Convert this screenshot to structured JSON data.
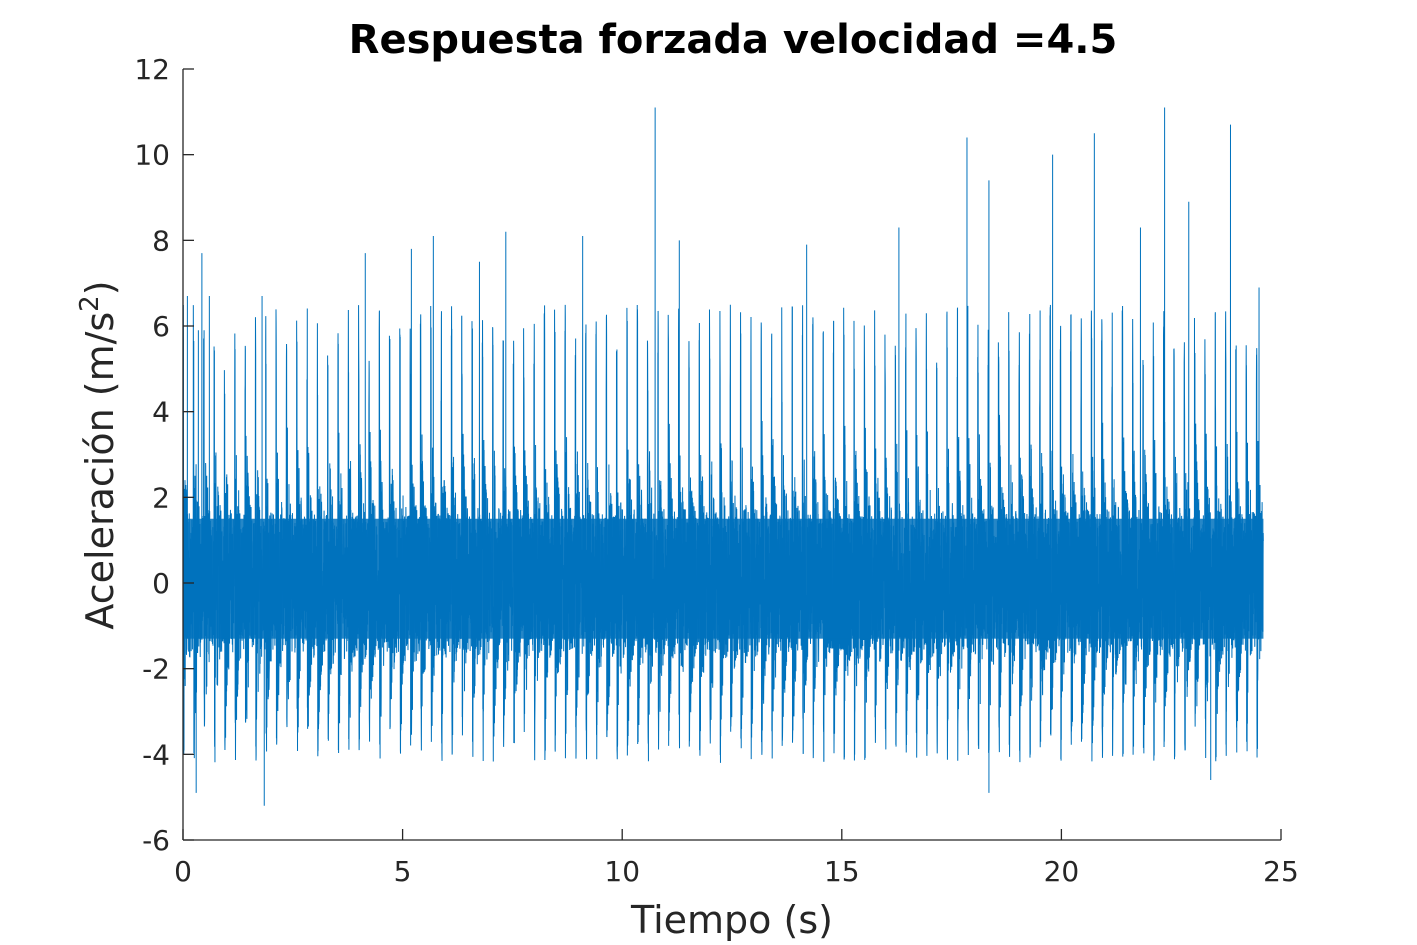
{
  "chart_data": {
    "type": "line",
    "title": "Respuesta forzada velocidad =4.5",
    "xlabel": "Tiempo (s)",
    "ylabel": "Aceleración (m/s",
    "ylabel_superscript": "2",
    "ylabel_close": ")",
    "xlim": [
      0,
      25
    ],
    "ylim": [
      -6,
      12
    ],
    "xticks": [
      0,
      5,
      10,
      15,
      20,
      25
    ],
    "yticks": [
      -6,
      -4,
      -2,
      0,
      2,
      4,
      6,
      8,
      10,
      12
    ],
    "xtick_labels": [
      "0",
      "5",
      "10",
      "15",
      "20",
      "25"
    ],
    "ytick_labels": [
      "-6",
      "-4",
      "-2",
      "0",
      "2",
      "4",
      "6",
      "8",
      "10",
      "12"
    ],
    "grid": false,
    "line_color": "#0072BD",
    "series": [
      {
        "x_start": 0,
        "x_end": 24.6,
        "cycle_period_s": 0.235,
        "peaks": [
          {
            "x": 0.1,
            "y": 6.7
          },
          {
            "x": 0.35,
            "y": 5.9
          },
          {
            "x": 0.43,
            "y": 7.7
          },
          {
            "x": 0.6,
            "y": 6.7
          },
          {
            "x": 1.8,
            "y": 6.7
          },
          {
            "x": 4.15,
            "y": 7.7
          },
          {
            "x": 5.2,
            "y": 7.8
          },
          {
            "x": 5.7,
            "y": 8.1
          },
          {
            "x": 6.75,
            "y": 7.5
          },
          {
            "x": 7.35,
            "y": 8.2
          },
          {
            "x": 9.1,
            "y": 8.1
          },
          {
            "x": 10.75,
            "y": 11.1
          },
          {
            "x": 11.3,
            "y": 8.0
          },
          {
            "x": 14.2,
            "y": 7.9
          },
          {
            "x": 16.3,
            "y": 8.3
          },
          {
            "x": 17.85,
            "y": 10.4
          },
          {
            "x": 18.35,
            "y": 9.4
          },
          {
            "x": 19.8,
            "y": 10.0
          },
          {
            "x": 20.75,
            "y": 10.5
          },
          {
            "x": 21.8,
            "y": 8.3
          },
          {
            "x": 22.35,
            "y": 11.1
          },
          {
            "x": 22.9,
            "y": 8.9
          },
          {
            "x": 23.85,
            "y": 10.7
          },
          {
            "x": 24.5,
            "y": 6.9
          }
        ],
        "troughs": [
          {
            "x": 0.3,
            "y": -4.9
          },
          {
            "x": 1.85,
            "y": -5.2
          },
          {
            "x": 18.35,
            "y": -4.9
          },
          {
            "x": 23.4,
            "y": -4.6
          }
        ],
        "typical_max": 6.5,
        "typical_min": -4.2,
        "dense_band": [
          -1.3,
          1.5
        ]
      }
    ]
  }
}
